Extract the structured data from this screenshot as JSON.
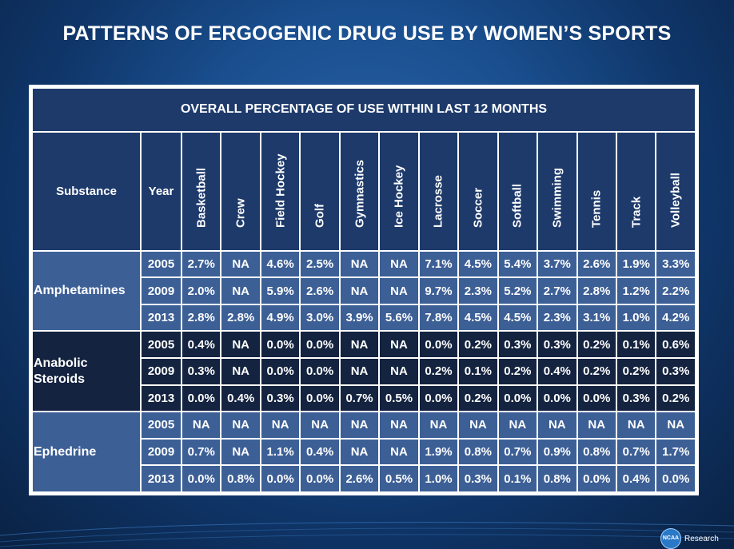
{
  "title": "PATTERNS OF ERGOGENIC DRUG USE BY WOMEN’S SPORTS",
  "table": {
    "caption": "OVERALL PERCENTAGE OF USE WITHIN LAST 12 MONTHS",
    "substance_header": "Substance",
    "year_header": "Year",
    "sports": [
      "Basketball",
      "Crew",
      "Field Hockey",
      "Golf",
      "Gymnastics",
      "Ice Hockey",
      "Lacrosse",
      "Soccer",
      "Softball",
      "Swimming",
      "Tennis",
      "Track",
      "Volleyball"
    ],
    "groups": [
      {
        "substance": "Amphetamines",
        "rows": [
          {
            "year": "2005",
            "values": [
              "2.7%",
              "NA",
              "4.6%",
              "2.5%",
              "NA",
              "NA",
              "7.1%",
              "4.5%",
              "5.4%",
              "3.7%",
              "2.6%",
              "1.9%",
              "3.3%"
            ]
          },
          {
            "year": "2009",
            "values": [
              "2.0%",
              "NA",
              "5.9%",
              "2.6%",
              "NA",
              "NA",
              "9.7%",
              "2.3%",
              "5.2%",
              "2.7%",
              "2.8%",
              "1.2%",
              "2.2%"
            ]
          },
          {
            "year": "2013",
            "values": [
              "2.8%",
              "2.8%",
              "4.9%",
              "3.0%",
              "3.9%",
              "5.6%",
              "7.8%",
              "4.5%",
              "4.5%",
              "2.3%",
              "3.1%",
              "1.0%",
              "4.2%"
            ]
          }
        ]
      },
      {
        "substance": "Anabolic Steroids",
        "rows": [
          {
            "year": "2005",
            "values": [
              "0.4%",
              "NA",
              "0.0%",
              "0.0%",
              "NA",
              "NA",
              "0.0%",
              "0.2%",
              "0.3%",
              "0.3%",
              "0.2%",
              "0.1%",
              "0.6%"
            ]
          },
          {
            "year": "2009",
            "values": [
              "0.3%",
              "NA",
              "0.0%",
              "0.0%",
              "NA",
              "NA",
              "0.2%",
              "0.1%",
              "0.2%",
              "0.4%",
              "0.2%",
              "0.2%",
              "0.3%"
            ]
          },
          {
            "year": "2013",
            "values": [
              "0.0%",
              "0.4%",
              "0.3%",
              "0.0%",
              "0.7%",
              "0.5%",
              "0.0%",
              "0.2%",
              "0.0%",
              "0.0%",
              "0.0%",
              "0.3%",
              "0.2%"
            ]
          }
        ]
      },
      {
        "substance": "Ephedrine",
        "rows": [
          {
            "year": "2005",
            "values": [
              "NA",
              "NA",
              "NA",
              "NA",
              "NA",
              "NA",
              "NA",
              "NA",
              "NA",
              "NA",
              "NA",
              "NA",
              "NA"
            ]
          },
          {
            "year": "2009",
            "values": [
              "0.7%",
              "NA",
              "1.1%",
              "0.4%",
              "NA",
              "NA",
              "1.9%",
              "0.8%",
              "0.7%",
              "0.9%",
              "0.8%",
              "0.7%",
              "1.7%"
            ]
          },
          {
            "year": "2013",
            "values": [
              "0.0%",
              "0.8%",
              "0.0%",
              "0.0%",
              "2.6%",
              "0.5%",
              "1.0%",
              "0.3%",
              "0.1%",
              "0.8%",
              "0.0%",
              "0.4%",
              "0.0%"
            ]
          }
        ]
      }
    ]
  },
  "footer": {
    "logo_text": "NCAA",
    "research_label": "Research"
  },
  "colors": {
    "header_bg": "#1d3a6b",
    "group_light": "#3c5f96",
    "group_dark": "#14233f"
  }
}
